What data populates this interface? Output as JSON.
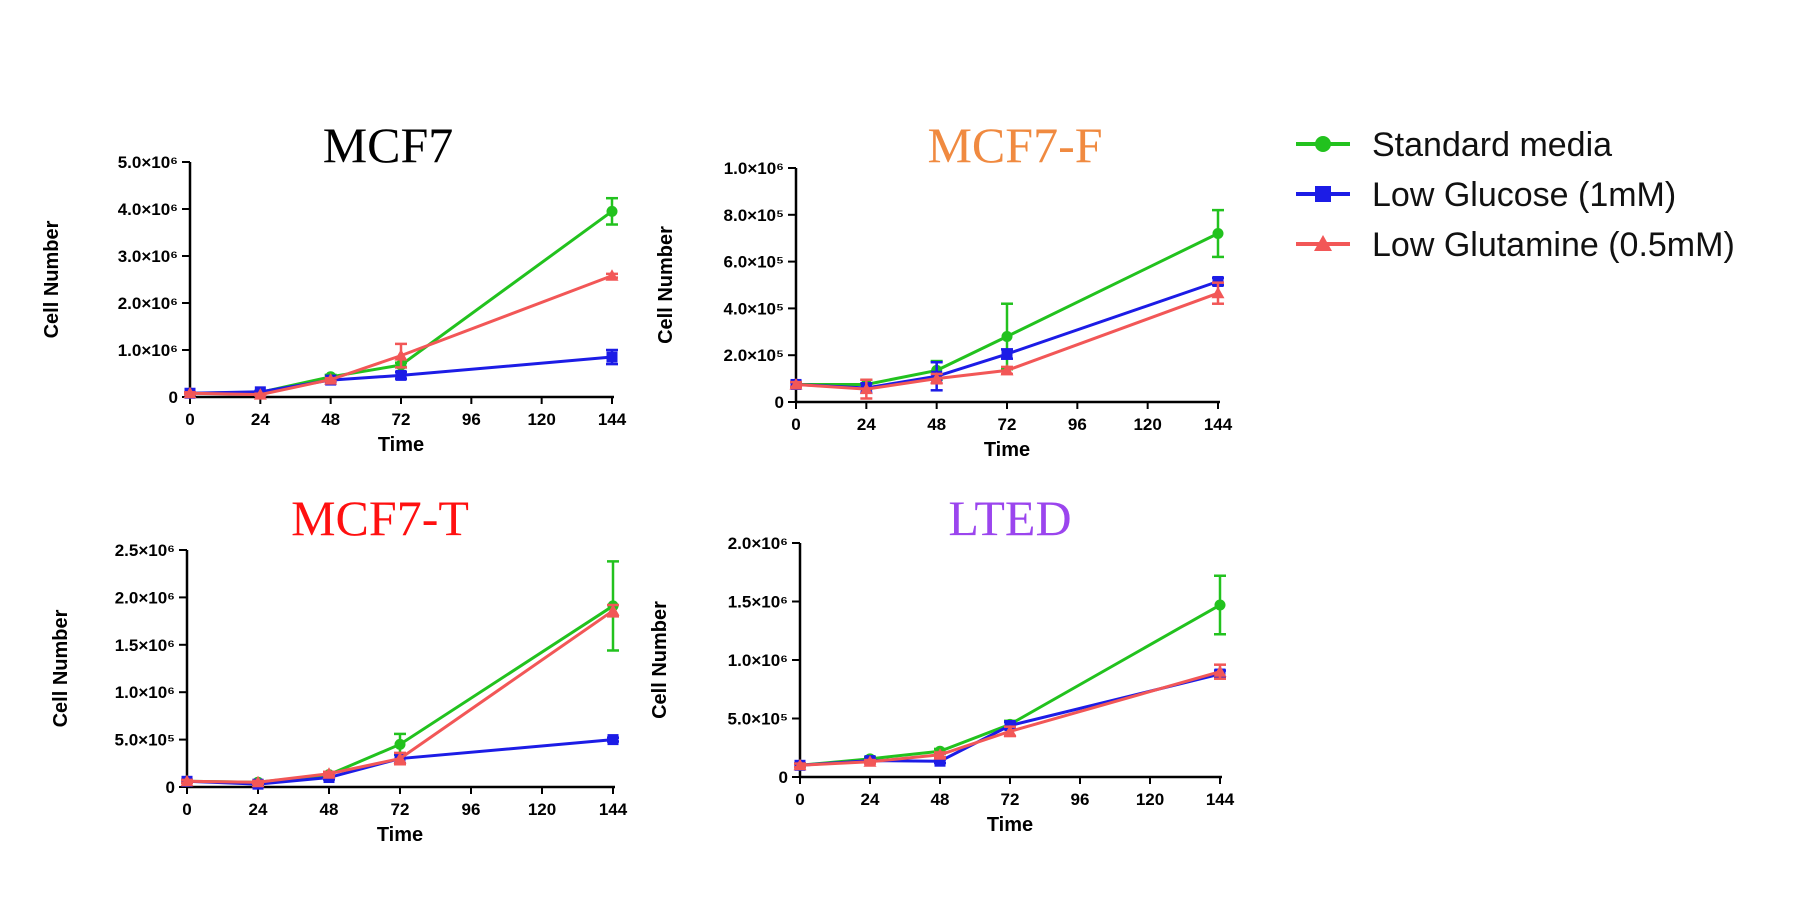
{
  "legend": {
    "items": [
      {
        "label": "Standard media",
        "color": "#22c21e",
        "marker": "circle"
      },
      {
        "label": "Low Glucose (1mM)",
        "color": "#1c1ce6",
        "marker": "square"
      },
      {
        "label": "Low Glutamine (0.5mM)",
        "color": "#f25757",
        "marker": "triangle"
      }
    ]
  },
  "chart_data": [
    {
      "type": "line",
      "title": "MCF7",
      "title_color": "#000000",
      "xlabel": "Time",
      "ylabel": "Cell Number",
      "x": [
        0,
        24,
        48,
        72,
        144
      ],
      "xticks": [
        "0",
        "24",
        "48",
        "72",
        "96",
        "120",
        "144"
      ],
      "xlim": [
        0,
        144
      ],
      "ylim": [
        0,
        5000000
      ],
      "yticks": [
        {
          "value": 0,
          "label": "0"
        },
        {
          "value": 1000000,
          "label": "1.0×10⁶"
        },
        {
          "value": 2000000,
          "label": "2.0×10⁶"
        },
        {
          "value": 3000000,
          "label": "3.0×10⁶"
        },
        {
          "value": 4000000,
          "label": "4.0×10⁶"
        },
        {
          "value": 5000000,
          "label": "5.0×10⁶"
        }
      ],
      "series": [
        {
          "name": "Standard media",
          "values": [
            80000,
            100000,
            430000,
            680000,
            3950000
          ],
          "errors": [
            20000,
            20000,
            40000,
            50000,
            280000
          ]
        },
        {
          "name": "Low Glucose (1mM)",
          "values": [
            80000,
            110000,
            360000,
            460000,
            850000
          ],
          "errors": [
            20000,
            20000,
            30000,
            70000,
            150000
          ]
        },
        {
          "name": "Low Glutamine (0.5mM)",
          "values": [
            80000,
            50000,
            370000,
            880000,
            2580000
          ],
          "errors": [
            20000,
            20000,
            30000,
            250000,
            40000
          ]
        }
      ]
    },
    {
      "type": "line",
      "title": "MCF7-F",
      "title_color": "#f08a40",
      "xlabel": "Time",
      "ylabel": "Cell Number",
      "x": [
        0,
        24,
        48,
        72,
        144
      ],
      "xticks": [
        "0",
        "24",
        "48",
        "72",
        "96",
        "120",
        "144"
      ],
      "xlim": [
        0,
        144
      ],
      "ylim": [
        0,
        1000000
      ],
      "yticks": [
        {
          "value": 0,
          "label": "0"
        },
        {
          "value": 200000,
          "label": "2.0×10⁵"
        },
        {
          "value": 400000,
          "label": "4.0×10⁵"
        },
        {
          "value": 600000,
          "label": "6.0×10⁵"
        },
        {
          "value": 800000,
          "label": "8.0×10⁵"
        },
        {
          "value": 1000000,
          "label": "1.0×10⁶"
        }
      ],
      "series": [
        {
          "name": "Standard media",
          "values": [
            75000,
            75000,
            135000,
            280000,
            720000
          ],
          "errors": [
            10000,
            20000,
            40000,
            140000,
            100000
          ]
        },
        {
          "name": "Low Glucose (1mM)",
          "values": [
            75000,
            60000,
            110000,
            205000,
            515000
          ],
          "errors": [
            10000,
            20000,
            60000,
            20000,
            15000
          ]
        },
        {
          "name": "Low Glutamine (0.5mM)",
          "values": [
            75000,
            55000,
            100000,
            135000,
            465000
          ],
          "errors": [
            10000,
            40000,
            20000,
            15000,
            45000
          ]
        }
      ]
    },
    {
      "type": "line",
      "title": "MCF7-T",
      "title_color": "#ff1010",
      "xlabel": "Time",
      "ylabel": "Cell Number",
      "x": [
        0,
        24,
        48,
        72,
        144
      ],
      "xticks": [
        "0",
        "24",
        "48",
        "72",
        "96",
        "120",
        "144"
      ],
      "xlim": [
        0,
        144
      ],
      "ylim": [
        0,
        2500000
      ],
      "yticks": [
        {
          "value": 0,
          "label": "0"
        },
        {
          "value": 500000,
          "label": "5.0×10⁵"
        },
        {
          "value": 1000000,
          "label": "1.0×10⁶"
        },
        {
          "value": 1500000,
          "label": "1.5×10⁶"
        },
        {
          "value": 2000000,
          "label": "2.0×10⁶"
        },
        {
          "value": 2500000,
          "label": "2.5×10⁶"
        }
      ],
      "series": [
        {
          "name": "Standard media",
          "values": [
            60000,
            50000,
            130000,
            450000,
            1910000
          ],
          "errors": [
            15000,
            15000,
            20000,
            110000,
            470000
          ]
        },
        {
          "name": "Low Glucose (1mM)",
          "values": [
            60000,
            30000,
            100000,
            300000,
            500000
          ],
          "errors": [
            15000,
            15000,
            20000,
            50000,
            20000
          ]
        },
        {
          "name": "Low Glutamine (0.5mM)",
          "values": [
            60000,
            50000,
            140000,
            300000,
            1860000
          ],
          "errors": [
            15000,
            15000,
            20000,
            60000,
            60000
          ]
        }
      ]
    },
    {
      "type": "line",
      "title": "LTED",
      "title_color": "#9b45ee",
      "xlabel": "Time",
      "ylabel": "Cell Number",
      "x": [
        0,
        24,
        48,
        72,
        144
      ],
      "xticks": [
        "0",
        "24",
        "48",
        "72",
        "96",
        "120",
        "144"
      ],
      "xlim": [
        0,
        144
      ],
      "ylim": [
        0,
        2000000
      ],
      "yticks": [
        {
          "value": 0,
          "label": "0"
        },
        {
          "value": 500000,
          "label": "5.0×10⁵"
        },
        {
          "value": 1000000,
          "label": "1.0×10⁶"
        },
        {
          "value": 1500000,
          "label": "1.5×10⁶"
        },
        {
          "value": 2000000,
          "label": "2.0×10⁶"
        }
      ],
      "series": [
        {
          "name": "Standard media",
          "values": [
            100000,
            155000,
            220000,
            450000,
            1470000
          ],
          "errors": [
            15000,
            15000,
            20000,
            30000,
            250000
          ]
        },
        {
          "name": "Low Glucose (1mM)",
          "values": [
            100000,
            140000,
            135000,
            440000,
            880000
          ],
          "errors": [
            15000,
            15000,
            15000,
            30000,
            30000
          ]
        },
        {
          "name": "Low Glutamine (0.5mM)",
          "values": [
            100000,
            130000,
            190000,
            390000,
            900000
          ],
          "errors": [
            15000,
            15000,
            20000,
            40000,
            60000
          ]
        }
      ]
    }
  ]
}
